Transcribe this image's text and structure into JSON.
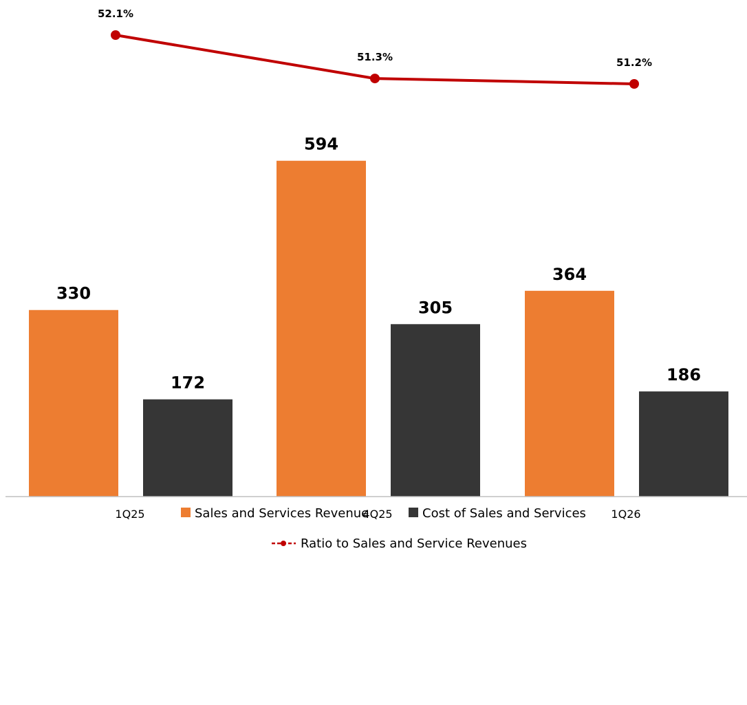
{
  "chart_data": {
    "type": "bar",
    "categories": [
      "1Q25",
      "4Q25",
      "1Q26"
    ],
    "series": [
      {
        "name": "Sales and Services Revenue",
        "values": [
          330,
          594,
          364
        ],
        "color": "#ED7D31",
        "labels": [
          "330",
          "594",
          "364"
        ]
      },
      {
        "name": "Cost of Sales and Services",
        "values": [
          172,
          305,
          186
        ],
        "color": "#363636",
        "labels": [
          "172",
          "305",
          "186"
        ]
      }
    ],
    "line_series": {
      "name": "Ratio to Sales and Service Revenues",
      "values": [
        52.1,
        51.3,
        51.2
      ],
      "labels": [
        "52.1%",
        "51.3%",
        "51.2%"
      ],
      "color": "#C00000",
      "marker": "circle"
    },
    "legend": {
      "row1": [
        "Sales and Services Revenue",
        "Cost of Sales and Services"
      ],
      "row2": "Ratio to Sales and Service Revenues",
      "placement": "bottom"
    },
    "title": "",
    "xlabel": "",
    "ylabel": "",
    "ylim": [
      0,
      600
    ],
    "grid": false
  }
}
